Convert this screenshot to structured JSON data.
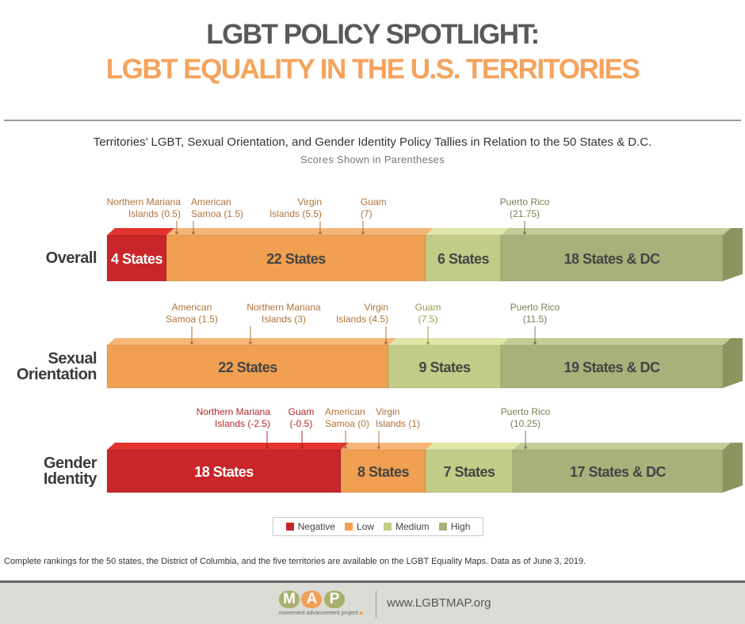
{
  "header": {
    "title_line1": "LGBT POLICY SPOTLIGHT:",
    "title_line2": "LGBT EQUALITY IN THE U.S. TERRITORIES"
  },
  "chart_data": {
    "type": "bar",
    "title": "Territories’ LGBT, Sexual Orientation, and Gender Identity Policy Tallies in Relation to the 50 States & D.C.",
    "subtitle": "Scores Shown in Parentheses",
    "colors": {
      "Negative": "#c8262a",
      "Low": "#f0a050",
      "Medium": "#c3cc87",
      "High": "#aab07a"
    },
    "rows": [
      {
        "label_lines": [
          "Overall"
        ],
        "segments": [
          {
            "category": "Negative",
            "label": "4 States"
          },
          {
            "category": "Low",
            "label": "22 States"
          },
          {
            "category": "Medium",
            "label": "6 States"
          },
          {
            "category": "High",
            "label": "18 States & DC"
          }
        ],
        "territories": [
          {
            "name_lines": [
              "Northern Mariana",
              "Islands (0.5)"
            ],
            "score": 0.5,
            "category": "Low"
          },
          {
            "name_lines": [
              "American",
              "Samoa (1.5)"
            ],
            "score": 1.5,
            "category": "Low"
          },
          {
            "name_lines": [
              "Virgin",
              "Islands (5.5)"
            ],
            "score": 5.5,
            "category": "Low"
          },
          {
            "name_lines": [
              "Guam",
              "(7)"
            ],
            "score": 7,
            "category": "Low"
          },
          {
            "name_lines": [
              "Puerto Rico",
              "(21.75)"
            ],
            "score": 21.75,
            "category": "High"
          }
        ]
      },
      {
        "label_lines": [
          "Sexual",
          "Orientation"
        ],
        "segments": [
          {
            "category": "Low",
            "label": "22 States"
          },
          {
            "category": "Medium",
            "label": "9 States"
          },
          {
            "category": "High",
            "label": "19 States & DC"
          }
        ],
        "territories": [
          {
            "name_lines": [
              "American",
              "Samoa (1.5)"
            ],
            "score": 1.5,
            "category": "Low"
          },
          {
            "name_lines": [
              "Northern Mariana",
              "Islands (3)"
            ],
            "score": 3,
            "category": "Low"
          },
          {
            "name_lines": [
              "Virgin",
              "Islands (4.5)"
            ],
            "score": 4.5,
            "category": "Low"
          },
          {
            "name_lines": [
              "Guam",
              "(7.5)"
            ],
            "score": 7.5,
            "category": "Medium"
          },
          {
            "name_lines": [
              "Puerto Rico",
              "(11.5)"
            ],
            "score": 11.5,
            "category": "High"
          }
        ]
      },
      {
        "label_lines": [
          "Gender",
          "Identity"
        ],
        "segments": [
          {
            "category": "Negative",
            "label": "18 States"
          },
          {
            "category": "Low",
            "label": "8 States"
          },
          {
            "category": "Medium",
            "label": "7 States"
          },
          {
            "category": "High",
            "label": "17 States & DC"
          }
        ],
        "territories": [
          {
            "name_lines": [
              "Northern Mariana",
              "Islands (-2.5)"
            ],
            "score": -2.5,
            "category": "Negative"
          },
          {
            "name_lines": [
              "Guam",
              "(-0.5)"
            ],
            "score": -0.5,
            "category": "Negative"
          },
          {
            "name_lines": [
              "American",
              "Samoa (0)"
            ],
            "score": 0,
            "category": "Low"
          },
          {
            "name_lines": [
              "Virgin",
              "Islands (1)"
            ],
            "score": 1,
            "category": "Low"
          },
          {
            "name_lines": [
              "Puerto Rico",
              "(10.25)"
            ],
            "score": 10.25,
            "category": "High"
          }
        ]
      }
    ],
    "legend": [
      "Negative",
      "Low",
      "Medium",
      "High"
    ],
    "legend_placement": "bottom-center"
  },
  "note": "Complete rankings for the 50 states, the District of Columbia, and the five territories are available on the LGBT Equality Maps. Data as of June 3, 2019.",
  "footer": {
    "logo_letters": [
      "M",
      "A",
      "P"
    ],
    "logo_tagline": "movement advancement project",
    "url": "www.LGBTMAP.org"
  }
}
